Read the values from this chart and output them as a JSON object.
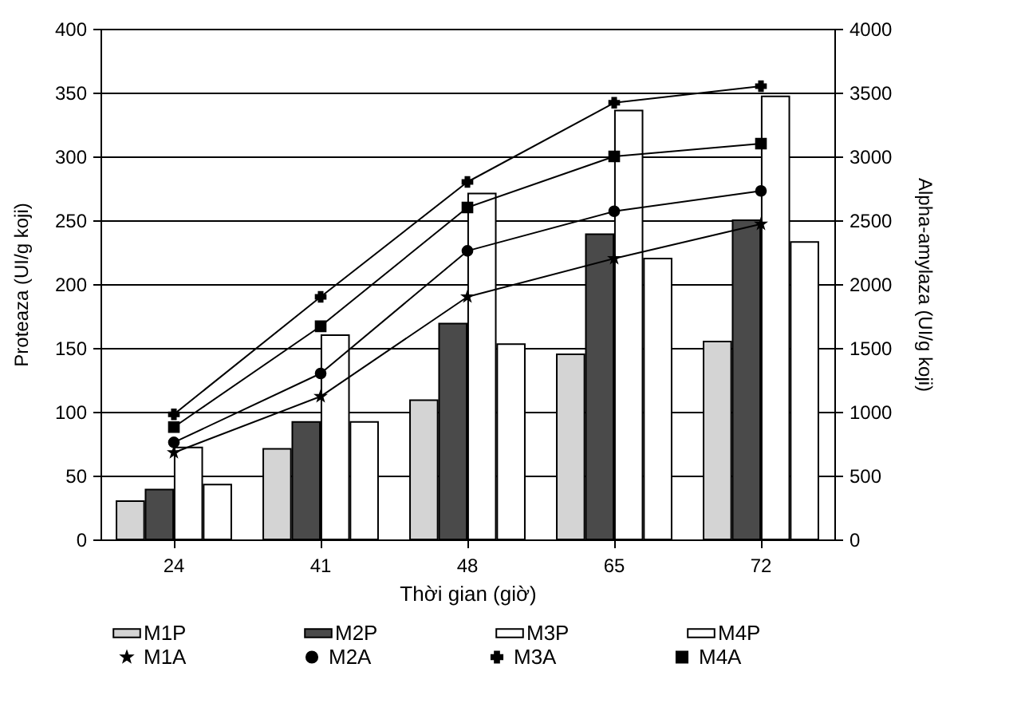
{
  "chart_data": {
    "type": "bar",
    "xlabel": "Thời gian (giờ)",
    "ylabel": "Proteaza (UI/g koji)",
    "y2label": "Alpha-amylaza (UI/g koji)",
    "categories": [
      "24",
      "41",
      "48",
      "65",
      "72"
    ],
    "series": [
      {
        "name": "M1P",
        "color": "#d4d4d4",
        "values": [
          30,
          71,
          109,
          145,
          155
        ]
      },
      {
        "name": "M2P",
        "color": "#4a4a4a",
        "values": [
          39,
          92,
          169,
          239,
          250
        ]
      },
      {
        "name": "M3P",
        "color": "#ffffff",
        "values": [
          72,
          160,
          271,
          336,
          347
        ]
      },
      {
        "name": "M4P",
        "color": "#ffffff",
        "values": [
          43,
          92,
          153,
          220,
          233
        ]
      },
      {
        "name": "M1A",
        "type": "line",
        "axis": "y2",
        "marker": "star",
        "color": "#000000",
        "values": [
          680,
          1120,
          1900,
          2200,
          2470
        ]
      },
      {
        "name": "M2A",
        "type": "line",
        "axis": "y2",
        "marker": "circle",
        "color": "#000000",
        "values": [
          760,
          1300,
          2260,
          2570,
          2730
        ]
      },
      {
        "name": "M3A",
        "type": "line",
        "axis": "y2",
        "marker": "cross",
        "color": "#000000",
        "values": [
          980,
          1900,
          2800,
          3420,
          3550
        ]
      },
      {
        "name": "M4A",
        "type": "line",
        "axis": "y2",
        "marker": "square",
        "color": "#000000",
        "values": [
          880,
          1670,
          2600,
          3000,
          3100
        ]
      }
    ],
    "ylim": [
      0,
      400
    ],
    "yticks": [
      0,
      50,
      100,
      150,
      200,
      250,
      300,
      350,
      400
    ],
    "y2lim": [
      0,
      4000
    ],
    "y2ticks": [
      0,
      500,
      1000,
      1500,
      2000,
      2500,
      3000,
      3500,
      4000
    ],
    "grid": "y",
    "legend": "bottom"
  }
}
